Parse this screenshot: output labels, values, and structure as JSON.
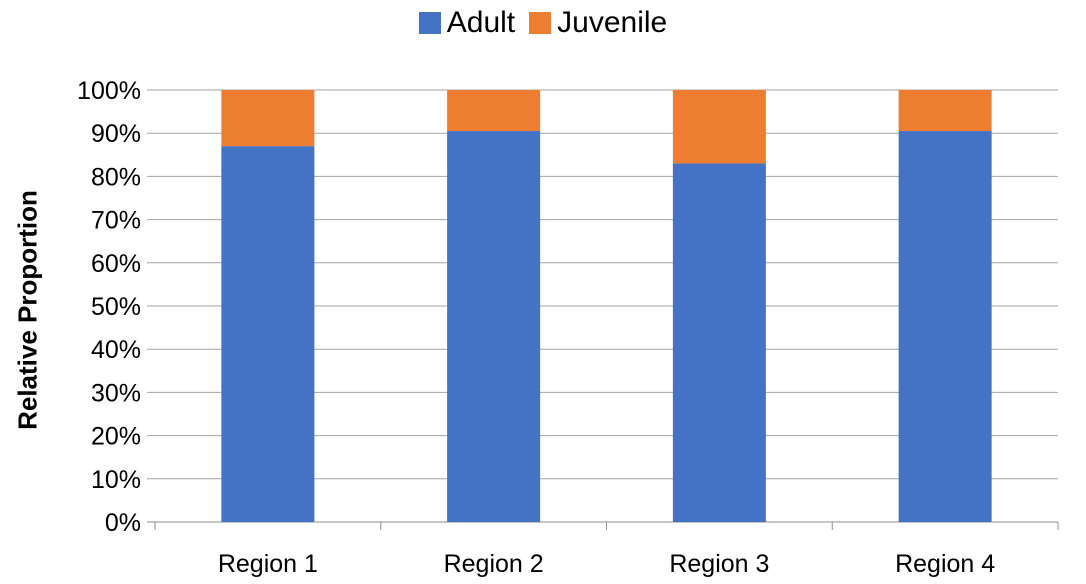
{
  "chart_data": {
    "type": "bar",
    "stacked": true,
    "percent_stacked": true,
    "categories": [
      "Region 1",
      "Region 2",
      "Region 3",
      "Region 4"
    ],
    "series": [
      {
        "name": "Adult",
        "values": [
          87,
          90.5,
          83,
          90.5
        ],
        "color": "#4472C4"
      },
      {
        "name": "Juvenile",
        "values": [
          13,
          9.5,
          17,
          9.5
        ],
        "color": "#ED7D31"
      }
    ],
    "xlabel": "",
    "ylabel": "Relative Proportion",
    "ylim": [
      0,
      100
    ],
    "yticks": [
      "0%",
      "10%",
      "20%",
      "30%",
      "40%",
      "50%",
      "60%",
      "70%",
      "80%",
      "90%",
      "100%"
    ],
    "grid": true,
    "legend_position": "top"
  }
}
